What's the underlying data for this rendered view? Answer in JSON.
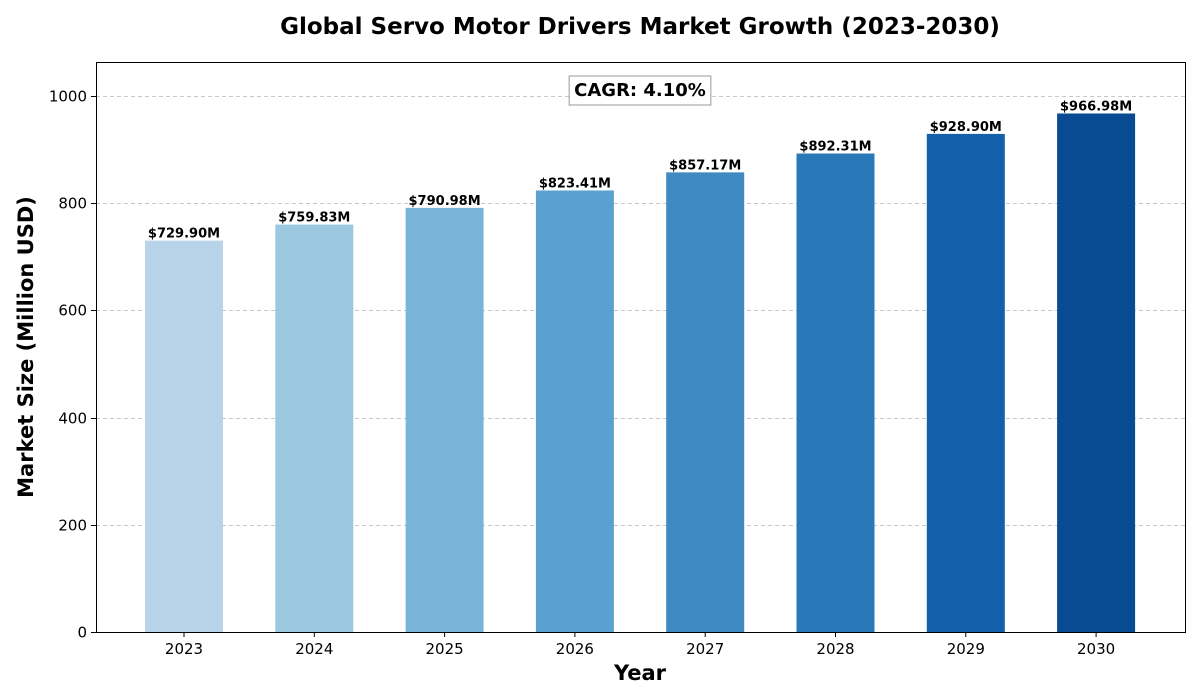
{
  "chart_data": {
    "type": "bar",
    "title": "Global Servo Motor Drivers Market Growth (2023-2030)",
    "xlabel": "Year",
    "ylabel": "Market Size (Million USD)",
    "categories": [
      "2023",
      "2024",
      "2025",
      "2026",
      "2027",
      "2028",
      "2029",
      "2030"
    ],
    "values": [
      729.9,
      759.83,
      790.98,
      823.41,
      857.17,
      892.31,
      928.9,
      966.98
    ],
    "value_labels": [
      "$729.90M",
      "$759.83M",
      "$790.98M",
      "$823.41M",
      "$857.17M",
      "$892.31M",
      "$928.90M",
      "$966.98M"
    ],
    "bar_colors": [
      "#b9d4e9",
      "#9cc9e0",
      "#79b5d9",
      "#5aa1cf",
      "#3f8ac3",
      "#2979b9",
      "#1460aa",
      "#084b93"
    ],
    "ylim": [
      0,
      1063
    ],
    "yticks": [
      0,
      200,
      400,
      600,
      800,
      1000
    ],
    "grid": "y-dashed",
    "annotation": "CAGR: 4.10%"
  }
}
